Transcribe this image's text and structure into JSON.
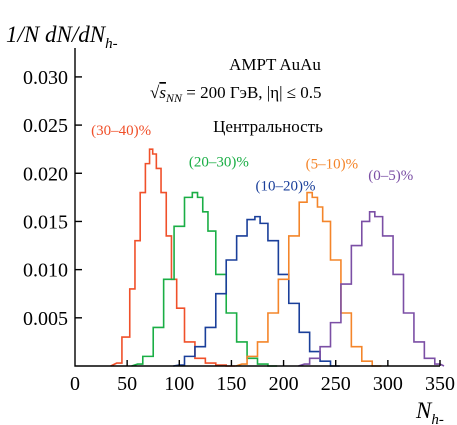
{
  "chart_data": {
    "type": "line",
    "title": "",
    "ylabel": "1/N dN/dN",
    "ylabel_sub": "h-",
    "xlabel": "N",
    "xlabel_sub": "h-",
    "xlim": [
      0,
      350
    ],
    "ylim": [
      0,
      0.033
    ],
    "x_ticks": [
      "0",
      "50",
      "100",
      "150",
      "200",
      "250",
      "300",
      "350"
    ],
    "x_tick_values": [
      0,
      50,
      100,
      150,
      200,
      250,
      300,
      350
    ],
    "y_ticks": [
      "0.005",
      "0.010",
      "0.015",
      "0.020",
      "0.025",
      "0.030"
    ],
    "y_tick_values": [
      0.005,
      0.01,
      0.015,
      0.02,
      0.025,
      0.03
    ],
    "annotations": {
      "line1": "AMPT AuAu",
      "line2_sqrt": "√",
      "line2_s": "s",
      "line2_sub": "NN",
      "line2_rest": " = 200 ГэВ, |η| ≤ 0.5",
      "line3": "Центральность"
    },
    "grid": false,
    "series": [
      {
        "name": "(30–40)%",
        "color": "#f0502a",
        "x": [
          40,
          50,
          55,
          60,
          65,
          70,
          73,
          76,
          80,
          85,
          90,
          95,
          100,
          110,
          120,
          130,
          140,
          150
        ],
        "y": [
          0.0003,
          0.003,
          0.008,
          0.013,
          0.018,
          0.021,
          0.0225,
          0.022,
          0.0205,
          0.018,
          0.0135,
          0.009,
          0.006,
          0.0025,
          0.0008,
          0.0003,
          0.0001,
          0.0
        ]
      },
      {
        "name": "(20–30)%",
        "color": "#1aae45",
        "x": [
          60,
          70,
          80,
          90,
          100,
          110,
          115,
          120,
          125,
          130,
          140,
          150,
          160,
          170,
          180,
          190
        ],
        "y": [
          0.0002,
          0.001,
          0.004,
          0.009,
          0.0145,
          0.0175,
          0.018,
          0.0175,
          0.016,
          0.014,
          0.0095,
          0.0055,
          0.0025,
          0.0008,
          0.0002,
          0.0
        ]
      },
      {
        "name": "(10–20)%",
        "color": "#1a3f9a",
        "x": [
          100,
          110,
          120,
          130,
          140,
          150,
          160,
          170,
          175,
          180,
          190,
          200,
          210,
          220,
          230,
          240,
          250
        ],
        "y": [
          0.0001,
          0.001,
          0.002,
          0.004,
          0.0075,
          0.011,
          0.0135,
          0.0152,
          0.0155,
          0.0148,
          0.013,
          0.0095,
          0.0065,
          0.0035,
          0.0015,
          0.0005,
          0.0
        ]
      },
      {
        "name": "(5–10)%",
        "color": "#f4852a",
        "x": [
          160,
          170,
          180,
          190,
          200,
          210,
          220,
          225,
          230,
          235,
          240,
          250,
          260,
          270,
          280,
          290
        ],
        "y": [
          0.0002,
          0.001,
          0.0025,
          0.0055,
          0.009,
          0.0135,
          0.017,
          0.018,
          0.0175,
          0.0165,
          0.015,
          0.011,
          0.0055,
          0.002,
          0.0005,
          0.0
        ]
      },
      {
        "name": "(0–5)%",
        "color": "#7b4fa5",
        "x": [
          220,
          230,
          240,
          250,
          260,
          270,
          280,
          285,
          290,
          300,
          310,
          320,
          330,
          340,
          350
        ],
        "y": [
          0.0002,
          0.0008,
          0.002,
          0.0045,
          0.0085,
          0.0125,
          0.015,
          0.016,
          0.0155,
          0.0135,
          0.0095,
          0.0055,
          0.0025,
          0.0008,
          0.0002
        ]
      }
    ]
  }
}
